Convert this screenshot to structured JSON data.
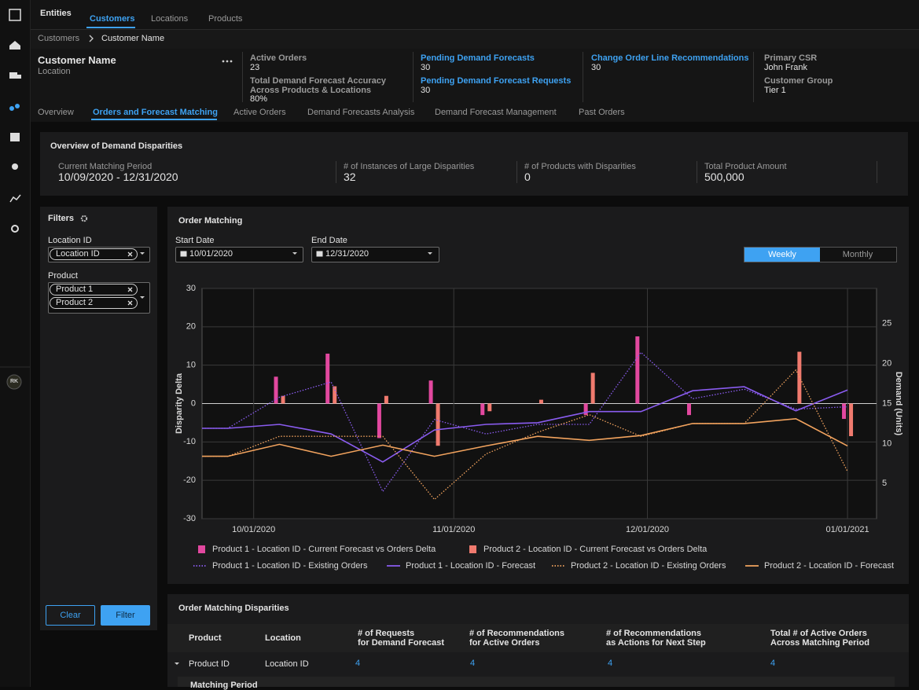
{
  "sidebar": {
    "avatar": "RK"
  },
  "topnav": {
    "title": "Entities",
    "tabs": [
      "Customers",
      "Locations",
      "Products"
    ]
  },
  "breadcrumb": [
    "Customers",
    "Customer Name"
  ],
  "header": {
    "name": "Customer Name",
    "subtitle": "Location",
    "stats": [
      {
        "label": "Active Orders",
        "value": "23"
      },
      {
        "label": [
          "Total Demand Forecast Accuracy",
          "Across Products & Locations"
        ],
        "value": "80%"
      },
      {
        "label": "Pending Demand Forecasts",
        "value": "30"
      },
      {
        "label": "Pending Demand Forecast Requests",
        "value": "30"
      },
      {
        "label": "Change Order Line Recommendations",
        "value": "30"
      },
      {
        "label": "Primary CSR",
        "value": "John Frank"
      },
      {
        "label": "Customer Group",
        "value": "Tier 1"
      }
    ]
  },
  "tabs": [
    "Overview",
    "Orders and Forecast Matching",
    "Active Orders",
    "Demand Forecasts Analysis",
    "Demand Forecast Management",
    "Past Orders"
  ],
  "overview": {
    "title": "Overview of Demand Disparities",
    "items": [
      {
        "label": "Current Matching Period",
        "value": "10/09/2020 - 12/31/2020"
      },
      {
        "label": "# of Instances of Large Disparities",
        "value": "32"
      },
      {
        "label": "# of Products with Disparities",
        "value": "0"
      },
      {
        "label": "Total Product Amount",
        "value": "500,000"
      }
    ]
  },
  "filters": {
    "title": "Filters",
    "location_label": "Location ID",
    "location_chips": [
      "Location ID"
    ],
    "product_label": "Product",
    "product_chips": [
      "Product 1",
      "Product 2"
    ],
    "buttons": [
      "Clear",
      "Filter"
    ]
  },
  "order_matching": {
    "title": "Order Matching",
    "start_label": "Start Date",
    "start_value": "10/01/2020",
    "end_label": "End Date",
    "end_value": "12/31/2020",
    "toggle": [
      "Weekly",
      "Monthly"
    ]
  },
  "chart_data": {
    "type": "combo",
    "y_label": "Disparity Delta",
    "y2_label": "Demand (Units)",
    "x": [
      -8,
      -4,
      4,
      12,
      20,
      28,
      36,
      44,
      52,
      60,
      68,
      76,
      84,
      92
    ],
    "xlim": [
      -8,
      96.5
    ],
    "xticks": [
      {
        "value": 0,
        "label": "10/01/2020"
      },
      {
        "value": 31,
        "label": "11/01/2020"
      },
      {
        "value": 61,
        "label": "12/01/2020"
      },
      {
        "value": 92,
        "label": "01/01/2021"
      }
    ],
    "ylim": [
      -30,
      30
    ],
    "yticks": [
      30,
      20,
      10,
      0,
      -10,
      -20,
      -30
    ],
    "y2lim": [
      0.6,
      29.4
    ],
    "y2ticks": [
      25,
      20,
      15,
      10,
      5
    ],
    "grid": true,
    "series": [
      {
        "name": "Product 1 - Location ID - Current Forecast vs Orders Delta",
        "kind": "bar",
        "color": "#e2489f",
        "values": [
          null,
          null,
          7,
          13,
          -9,
          6,
          -3,
          null,
          -3,
          17.5,
          -3,
          null,
          null,
          -4
        ]
      },
      {
        "name": "Product 2 - Location ID - Current Forecast vs Orders Delta",
        "kind": "bar",
        "color": "#f07a6e",
        "values": [
          null,
          null,
          2,
          4.5,
          2,
          -11,
          -2,
          1,
          8,
          null,
          null,
          null,
          13.5,
          -8.5
        ]
      },
      {
        "name": "Product 1 - Location ID - Existing Orders",
        "kind": "line",
        "line_style": "dotted",
        "axis": "y2",
        "color": "#8a5cf0",
        "values": [
          11.9,
          11.9,
          15.8,
          17.7,
          4.0,
          13.0,
          11.2,
          12.4,
          12.4,
          21.4,
          15.6,
          16.8,
          14.3,
          14.6
        ]
      },
      {
        "name": "Product 1 - Location ID - Forecast",
        "kind": "line",
        "line_style": "solid",
        "axis": "y2",
        "color": "#8a5cf0",
        "values": [
          11.9,
          11.9,
          12.4,
          11.2,
          7.7,
          11.7,
          12.4,
          12.6,
          14.0,
          14.0,
          16.6,
          17.1,
          14.1,
          16.7
        ]
      },
      {
        "name": "Product 2 - Location ID - Existing Orders",
        "kind": "line",
        "line_style": "dotted",
        "axis": "y2",
        "color": "#f2a35e",
        "values": [
          8.4,
          8.4,
          10.9,
          10.9,
          10.9,
          3.0,
          8.7,
          11.4,
          13.6,
          10.9,
          12.5,
          12.5,
          19.2,
          6.5
        ]
      },
      {
        "name": "Product 2 - Location ID - Forecast",
        "kind": "line",
        "line_style": "solid",
        "axis": "y2",
        "color": "#f2a35e",
        "values": [
          8.4,
          8.4,
          9.9,
          8.4,
          9.8,
          8.4,
          9.7,
          10.9,
          10.4,
          11.0,
          12.5,
          12.5,
          13.1,
          9.7
        ]
      }
    ]
  },
  "disparities": {
    "title": "Order Matching Disparities",
    "headers": [
      "Product",
      "Location",
      [
        "# of Requests",
        "for Demand Forecast"
      ],
      [
        "# of Recommendations",
        "for Active Orders"
      ],
      [
        "# of Recommendations",
        "as Actions for Next Step"
      ],
      [
        "Total # of Active Orders",
        "Across Matching Period"
      ]
    ],
    "rows": [
      [
        "Product ID",
        "Location ID",
        "4",
        "4",
        "4",
        "4"
      ]
    ],
    "subrow_title": "Matching Period"
  }
}
